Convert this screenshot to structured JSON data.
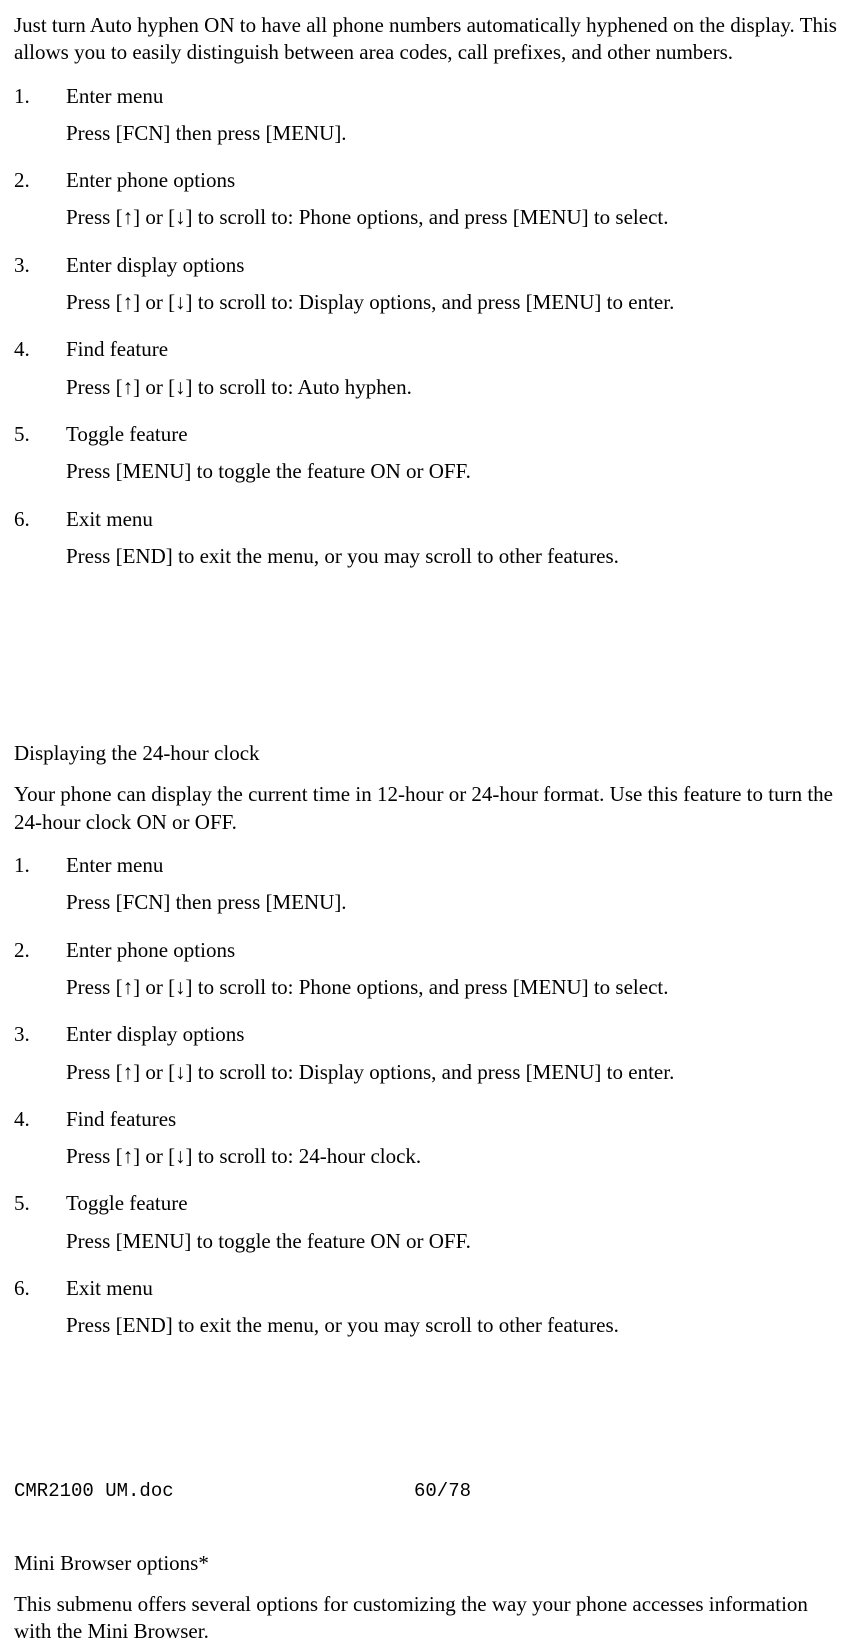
{
  "section1": {
    "intro": "Just turn Auto hyphen ON to have all phone numbers automatically hyphened on the display. This allows you to easily distinguish between area codes, call prefixes, and other numbers.",
    "steps": [
      {
        "num": "1.",
        "title": "Enter menu",
        "action": "Press [FCN] then press [MENU]."
      },
      {
        "num": "2.",
        "title": "Enter phone options",
        "action": "Press [↑] or [↓] to scroll to: Phone options, and press [MENU] to select."
      },
      {
        "num": "3.",
        "title": "Enter display options",
        "action": "Press [↑] or [↓] to scroll to: Display options, and press [MENU] to enter."
      },
      {
        "num": "4.",
        "title": "Find feature",
        "action": "Press [↑] or [↓] to scroll to: Auto hyphen."
      },
      {
        "num": "5.",
        "title": "Toggle feature",
        "action": "Press [MENU] to toggle the feature ON or OFF."
      },
      {
        "num": "6.",
        "title": "Exit menu",
        "action": "Press [END] to exit the menu, or you may scroll to other features."
      }
    ]
  },
  "section2": {
    "heading": "Displaying the 24-hour clock",
    "intro": "Your phone can display the current time in 12-hour or 24-hour format. Use this feature to turn the 24-hour clock ON or OFF.",
    "steps": [
      {
        "num": "1.",
        "title": "Enter menu",
        "action": "Press [FCN] then press [MENU]."
      },
      {
        "num": "2.",
        "title": "Enter phone options",
        "action": "Press [↑] or [↓] to scroll to: Phone options, and press [MENU] to select."
      },
      {
        "num": "3.",
        "title": "Enter display options",
        "action": "Press [↑] or [↓] to scroll to: Display options, and press [MENU] to enter."
      },
      {
        "num": "4.",
        "title": "Find features",
        "action": "Press [↑] or [↓] to scroll to: 24-hour clock."
      },
      {
        "num": "5.",
        "title": "Toggle feature",
        "action": "Press [MENU] to toggle the feature ON or OFF."
      },
      {
        "num": "6.",
        "title": "Exit menu",
        "action": "Press [END] to exit the menu, or you may scroll to other features."
      }
    ]
  },
  "section3": {
    "heading": "Mini Browser options*",
    "intro": "This submenu offers several options for customizing the way your phone accesses information with the Mini Browser."
  },
  "footer": {
    "left": "CMR2100 UM.doc",
    "center": "60/78"
  }
}
